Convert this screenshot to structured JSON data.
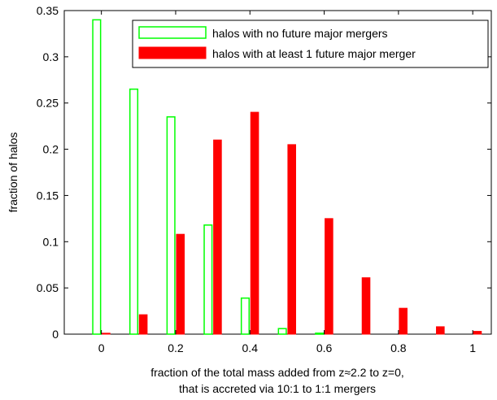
{
  "chart_data": {
    "type": "bar",
    "x": [
      0,
      0.1,
      0.2,
      0.3,
      0.4,
      0.5,
      0.6,
      0.7,
      0.8,
      0.9,
      1.0
    ],
    "series": [
      {
        "name": "halos with no future major mergers",
        "style": "outline",
        "color": "#00ff00",
        "values": [
          0.34,
          0.265,
          0.235,
          0.118,
          0.039,
          0.006,
          0.001,
          0,
          0,
          0,
          0
        ]
      },
      {
        "name": "halos with at least 1 future major merger",
        "style": "filled",
        "color": "#ff0000",
        "values": [
          0.001,
          0.021,
          0.108,
          0.21,
          0.24,
          0.205,
          0.125,
          0.061,
          0.028,
          0.008,
          0.003
        ]
      }
    ],
    "xlim": [
      -0.1,
      1.05
    ],
    "ylim": [
      0,
      0.35
    ],
    "xticks": [
      "0",
      "0.2",
      "0.4",
      "0.6",
      "0.8",
      "1"
    ],
    "yticks": [
      "0",
      "0.05",
      "0.1",
      "0.15",
      "0.2",
      "0.25",
      "0.3",
      "0.35"
    ],
    "xlabel": [
      "fraction of the total mass added from z≈2.2 to z=0,",
      "that is accreted via 10:1 to 1:1 mergers"
    ],
    "ylabel": "fraction of halos",
    "legend": "top-right",
    "grid": false
  }
}
